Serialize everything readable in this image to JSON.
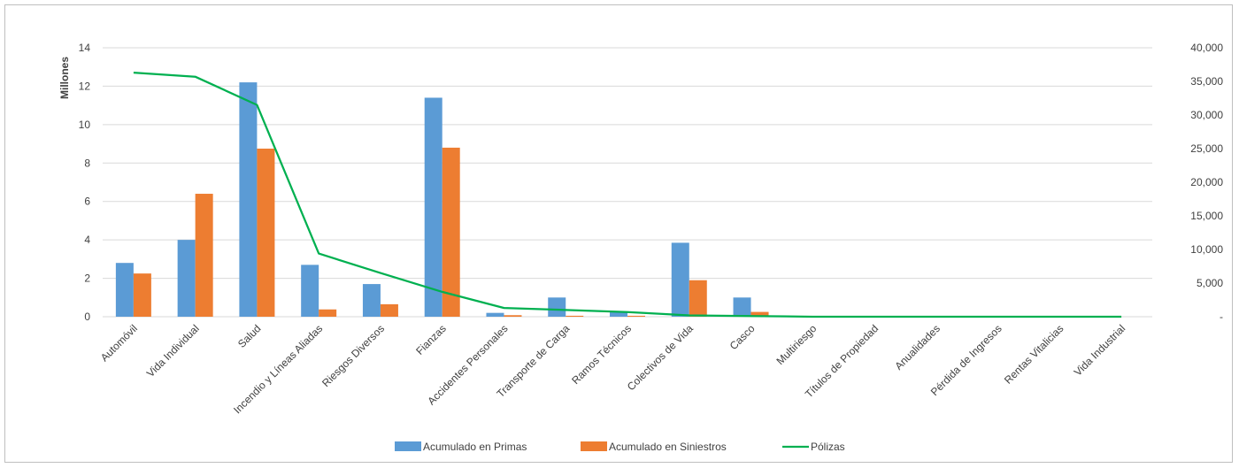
{
  "chart_data": {
    "type": "bar",
    "title": "",
    "ylabel": "Millones",
    "y2label": "",
    "ylim": [
      0,
      14
    ],
    "yticks": [
      "0",
      "2",
      "4",
      "6",
      "8",
      "10",
      "12",
      "14"
    ],
    "y2lim": [
      0,
      40000
    ],
    "y2ticks": [
      "-",
      "5,000",
      "10,000",
      "15,000",
      "20,000",
      "25,000",
      "30,000",
      "35,000",
      "40,000"
    ],
    "grid": true,
    "legend_position": "bottom",
    "categories": [
      "Automóvil",
      "Vida Individual",
      "Salud",
      "Incendio y Líneas Aliadas",
      "Riesgos  Diversos",
      "Fianzas",
      "Accidentes Personales",
      "Transporte de Carga",
      "Ramos Técnicos",
      "Colectivos de Vida",
      "Casco",
      "Multiriesgo",
      "Títulos de Propiedad",
      "Anualidades",
      "Pérdida de Ingresos",
      "Rentas Vitalicias",
      "Vida Industrial"
    ],
    "series": [
      {
        "name": "Acumulado en Primas",
        "type": "bar",
        "axis": "left",
        "color": "#5B9BD5",
        "values": [
          2.8,
          4.0,
          12.2,
          2.7,
          1.7,
          11.4,
          0.2,
          1.0,
          0.25,
          3.85,
          1.0,
          0,
          0,
          0,
          0,
          0,
          0
        ]
      },
      {
        "name": "Acumulado en Siniestros",
        "type": "bar",
        "axis": "left",
        "color": "#ED7D31",
        "values": [
          2.25,
          6.4,
          8.75,
          0.38,
          0.65,
          8.8,
          0.08,
          0.05,
          0.05,
          1.9,
          0.25,
          0,
          0,
          0,
          0,
          0,
          0
        ]
      },
      {
        "name": "Pólizas",
        "type": "line",
        "axis": "right",
        "color": "#00B050",
        "values": [
          36300,
          35700,
          31500,
          9400,
          6500,
          3700,
          1300,
          1000,
          700,
          200,
          100,
          0,
          0,
          0,
          0,
          0,
          0
        ]
      }
    ]
  }
}
